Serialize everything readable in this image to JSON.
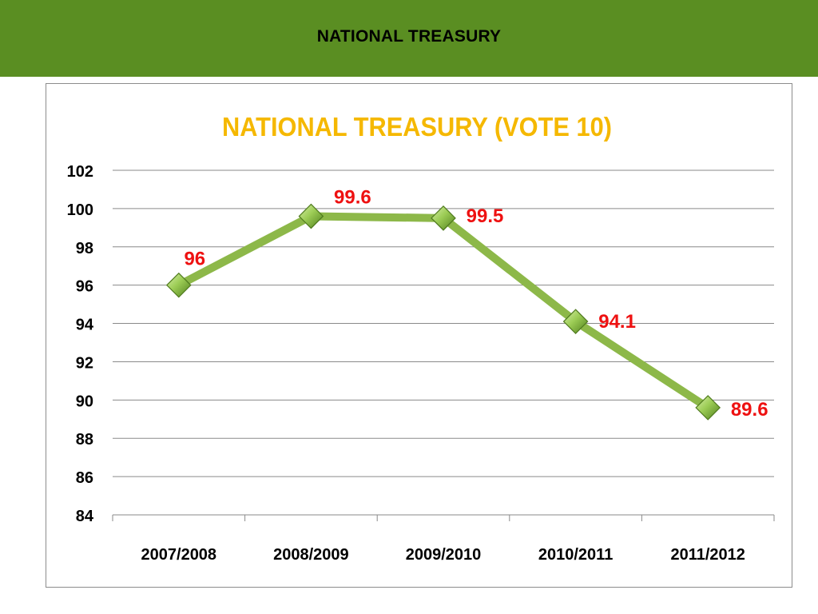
{
  "header": {
    "title": "NATIONAL TREASURY",
    "background_color": "#5a8e22"
  },
  "chart_data": {
    "type": "line",
    "title": "NATIONAL TREASURY (VOTE 10)",
    "title_color": "#f5b800",
    "xlabel": "",
    "ylabel": "",
    "categories": [
      "2007/2008",
      "2008/2009",
      "2009/2010",
      "2010/2011",
      "2011/2012"
    ],
    "series": [
      {
        "values": [
          96,
          99.6,
          99.5,
          94.1,
          89.6
        ],
        "labels": [
          "96",
          "99.6",
          "99.5",
          "94.1",
          "89.6"
        ],
        "color": "#8db849",
        "marker": "diamond",
        "marker_color": "#7fb239"
      }
    ],
    "ylim": [
      84,
      102
    ],
    "yticks": [
      102,
      100,
      98,
      96,
      94,
      92,
      90,
      88,
      86,
      84
    ],
    "data_label_color": "#ee1111",
    "grid": true,
    "legend": "none"
  }
}
